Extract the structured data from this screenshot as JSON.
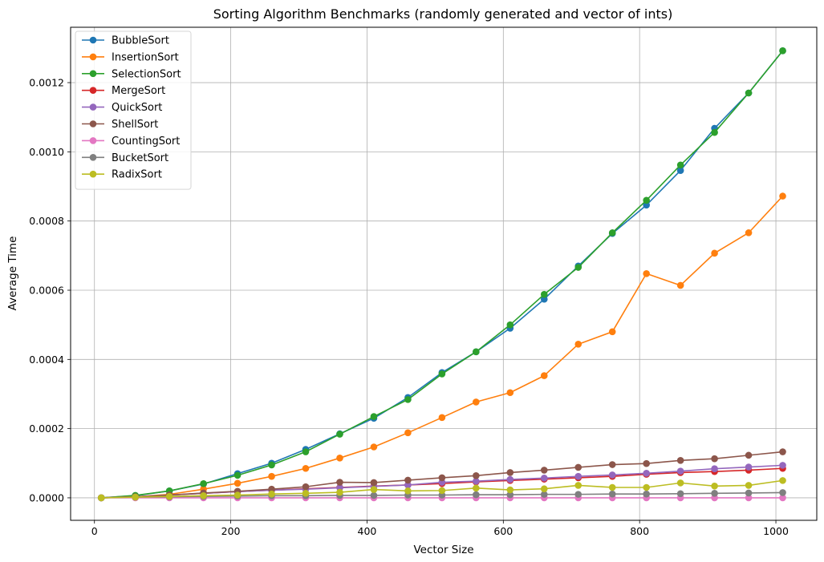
{
  "chart_data": {
    "type": "line",
    "title": "Sorting Algorithm Benchmarks (randomly generated and vector of ints)",
    "xlabel": "Vector Size",
    "ylabel": "Average Time",
    "xlim": [
      -35,
      1060
    ],
    "ylim": [
      -6.5e-05,
      0.00136
    ],
    "x_ticks": [
      0,
      200,
      400,
      600,
      800,
      1000
    ],
    "x_tick_labels": [
      "0",
      "200",
      "400",
      "600",
      "800",
      "1000"
    ],
    "y_ticks": [
      0,
      0.0002,
      0.0004,
      0.0006,
      0.0008,
      0.001,
      0.0012
    ],
    "y_tick_labels": [
      "0.0000",
      "0.0002",
      "0.0004",
      "0.0006",
      "0.0008",
      "0.0010",
      "0.0012"
    ],
    "grid": true,
    "legend_position": "top-left",
    "x": [
      10,
      60,
      110,
      160,
      210,
      260,
      310,
      360,
      410,
      460,
      510,
      560,
      610,
      660,
      710,
      760,
      810,
      860,
      910,
      960,
      1010
    ],
    "series": [
      {
        "name": "BubbleSort",
        "color": "#1f77b4",
        "values": [
          0,
          6e-06,
          2e-05,
          4e-05,
          7e-05,
          0.0001,
          0.00014,
          0.000185,
          0.00023,
          0.00029,
          0.000362,
          0.000422,
          0.00049,
          0.000574,
          0.00067,
          0.000764,
          0.000846,
          0.000946,
          0.001068,
          0.00117,
          0.001292
        ]
      },
      {
        "name": "InsertionSort",
        "color": "#ff7f0e",
        "values": [
          0,
          3e-06,
          1e-05,
          2.5e-05,
          4.2e-05,
          6.2e-05,
          8.5e-05,
          0.000115,
          0.000147,
          0.000188,
          0.000232,
          0.000277,
          0.000304,
          0.000353,
          0.000444,
          0.00048,
          0.000648,
          0.000614,
          0.000707,
          0.000766,
          0.000872
        ]
      },
      {
        "name": "SelectionSort",
        "color": "#2ca02c",
        "values": [
          0,
          7e-06,
          2e-05,
          4.1e-05,
          6.5e-05,
          9.5e-05,
          0.000133,
          0.000184,
          0.000235,
          0.000284,
          0.000358,
          0.000422,
          0.0005,
          0.000588,
          0.000666,
          0.000766,
          0.00086,
          0.000962,
          0.001056,
          0.00117,
          0.001292
        ]
      },
      {
        "name": "MergeSort",
        "color": "#d62728",
        "values": [
          0,
          3e-06,
          8e-06,
          1.3e-05,
          1.8e-05,
          2.2e-05,
          2.6e-05,
          3e-05,
          3.4e-05,
          3.7e-05,
          4.1e-05,
          4.6e-05,
          5e-05,
          5.4e-05,
          5.8e-05,
          6.2e-05,
          6.8e-05,
          7.3e-05,
          7.6e-05,
          8e-05,
          8.5e-05
        ]
      },
      {
        "name": "QuickSort",
        "color": "#9467bd",
        "values": [
          0,
          3e-06,
          8e-06,
          1.3e-05,
          1.8e-05,
          2.2e-05,
          2.5e-05,
          2.9e-05,
          3.3e-05,
          3.7e-05,
          4.5e-05,
          4.8e-05,
          5.3e-05,
          5.7e-05,
          6.2e-05,
          6.6e-05,
          7.1e-05,
          7.7e-05,
          8.4e-05,
          8.9e-05,
          9.4e-05
        ]
      },
      {
        "name": "ShellSort",
        "color": "#8c564b",
        "values": [
          0,
          3e-06,
          8e-06,
          1.4e-05,
          1.9e-05,
          2.5e-05,
          3.2e-05,
          4.5e-05,
          4.4e-05,
          5.1e-05,
          5.8e-05,
          6.4e-05,
          7.3e-05,
          8e-05,
          8.8e-05,
          9.6e-05,
          9.9e-05,
          0.000108,
          0.000113,
          0.000123,
          0.000133
        ]
      },
      {
        "name": "CountingSort",
        "color": "#e377c2",
        "values": [
          0,
          0,
          0,
          0,
          0,
          0,
          0,
          0,
          0,
          0,
          0,
          0,
          0,
          0,
          0,
          0,
          0,
          0,
          0,
          0,
          0
        ]
      },
      {
        "name": "BucketSort",
        "color": "#7f7f7f",
        "values": [
          0,
          2e-06,
          3e-06,
          4e-06,
          5e-06,
          6e-06,
          6e-06,
          7e-06,
          7e-06,
          8e-06,
          8e-06,
          9e-06,
          9e-06,
          1e-05,
          1e-05,
          1.1e-05,
          1.1e-05,
          1.2e-05,
          1.3e-05,
          1.4e-05,
          1.5e-05
        ]
      },
      {
        "name": "RadixSort",
        "color": "#bcbd22",
        "values": [
          0,
          2e-06,
          4e-06,
          6e-06,
          8e-06,
          1.1e-05,
          1.3e-05,
          1.6e-05,
          2.4e-05,
          2e-05,
          2.1e-05,
          2.8e-05,
          2.3e-05,
          2.6e-05,
          3.6e-05,
          3e-05,
          3e-05,
          4.3e-05,
          3.4e-05,
          3.6e-05,
          5e-05
        ]
      }
    ]
  }
}
